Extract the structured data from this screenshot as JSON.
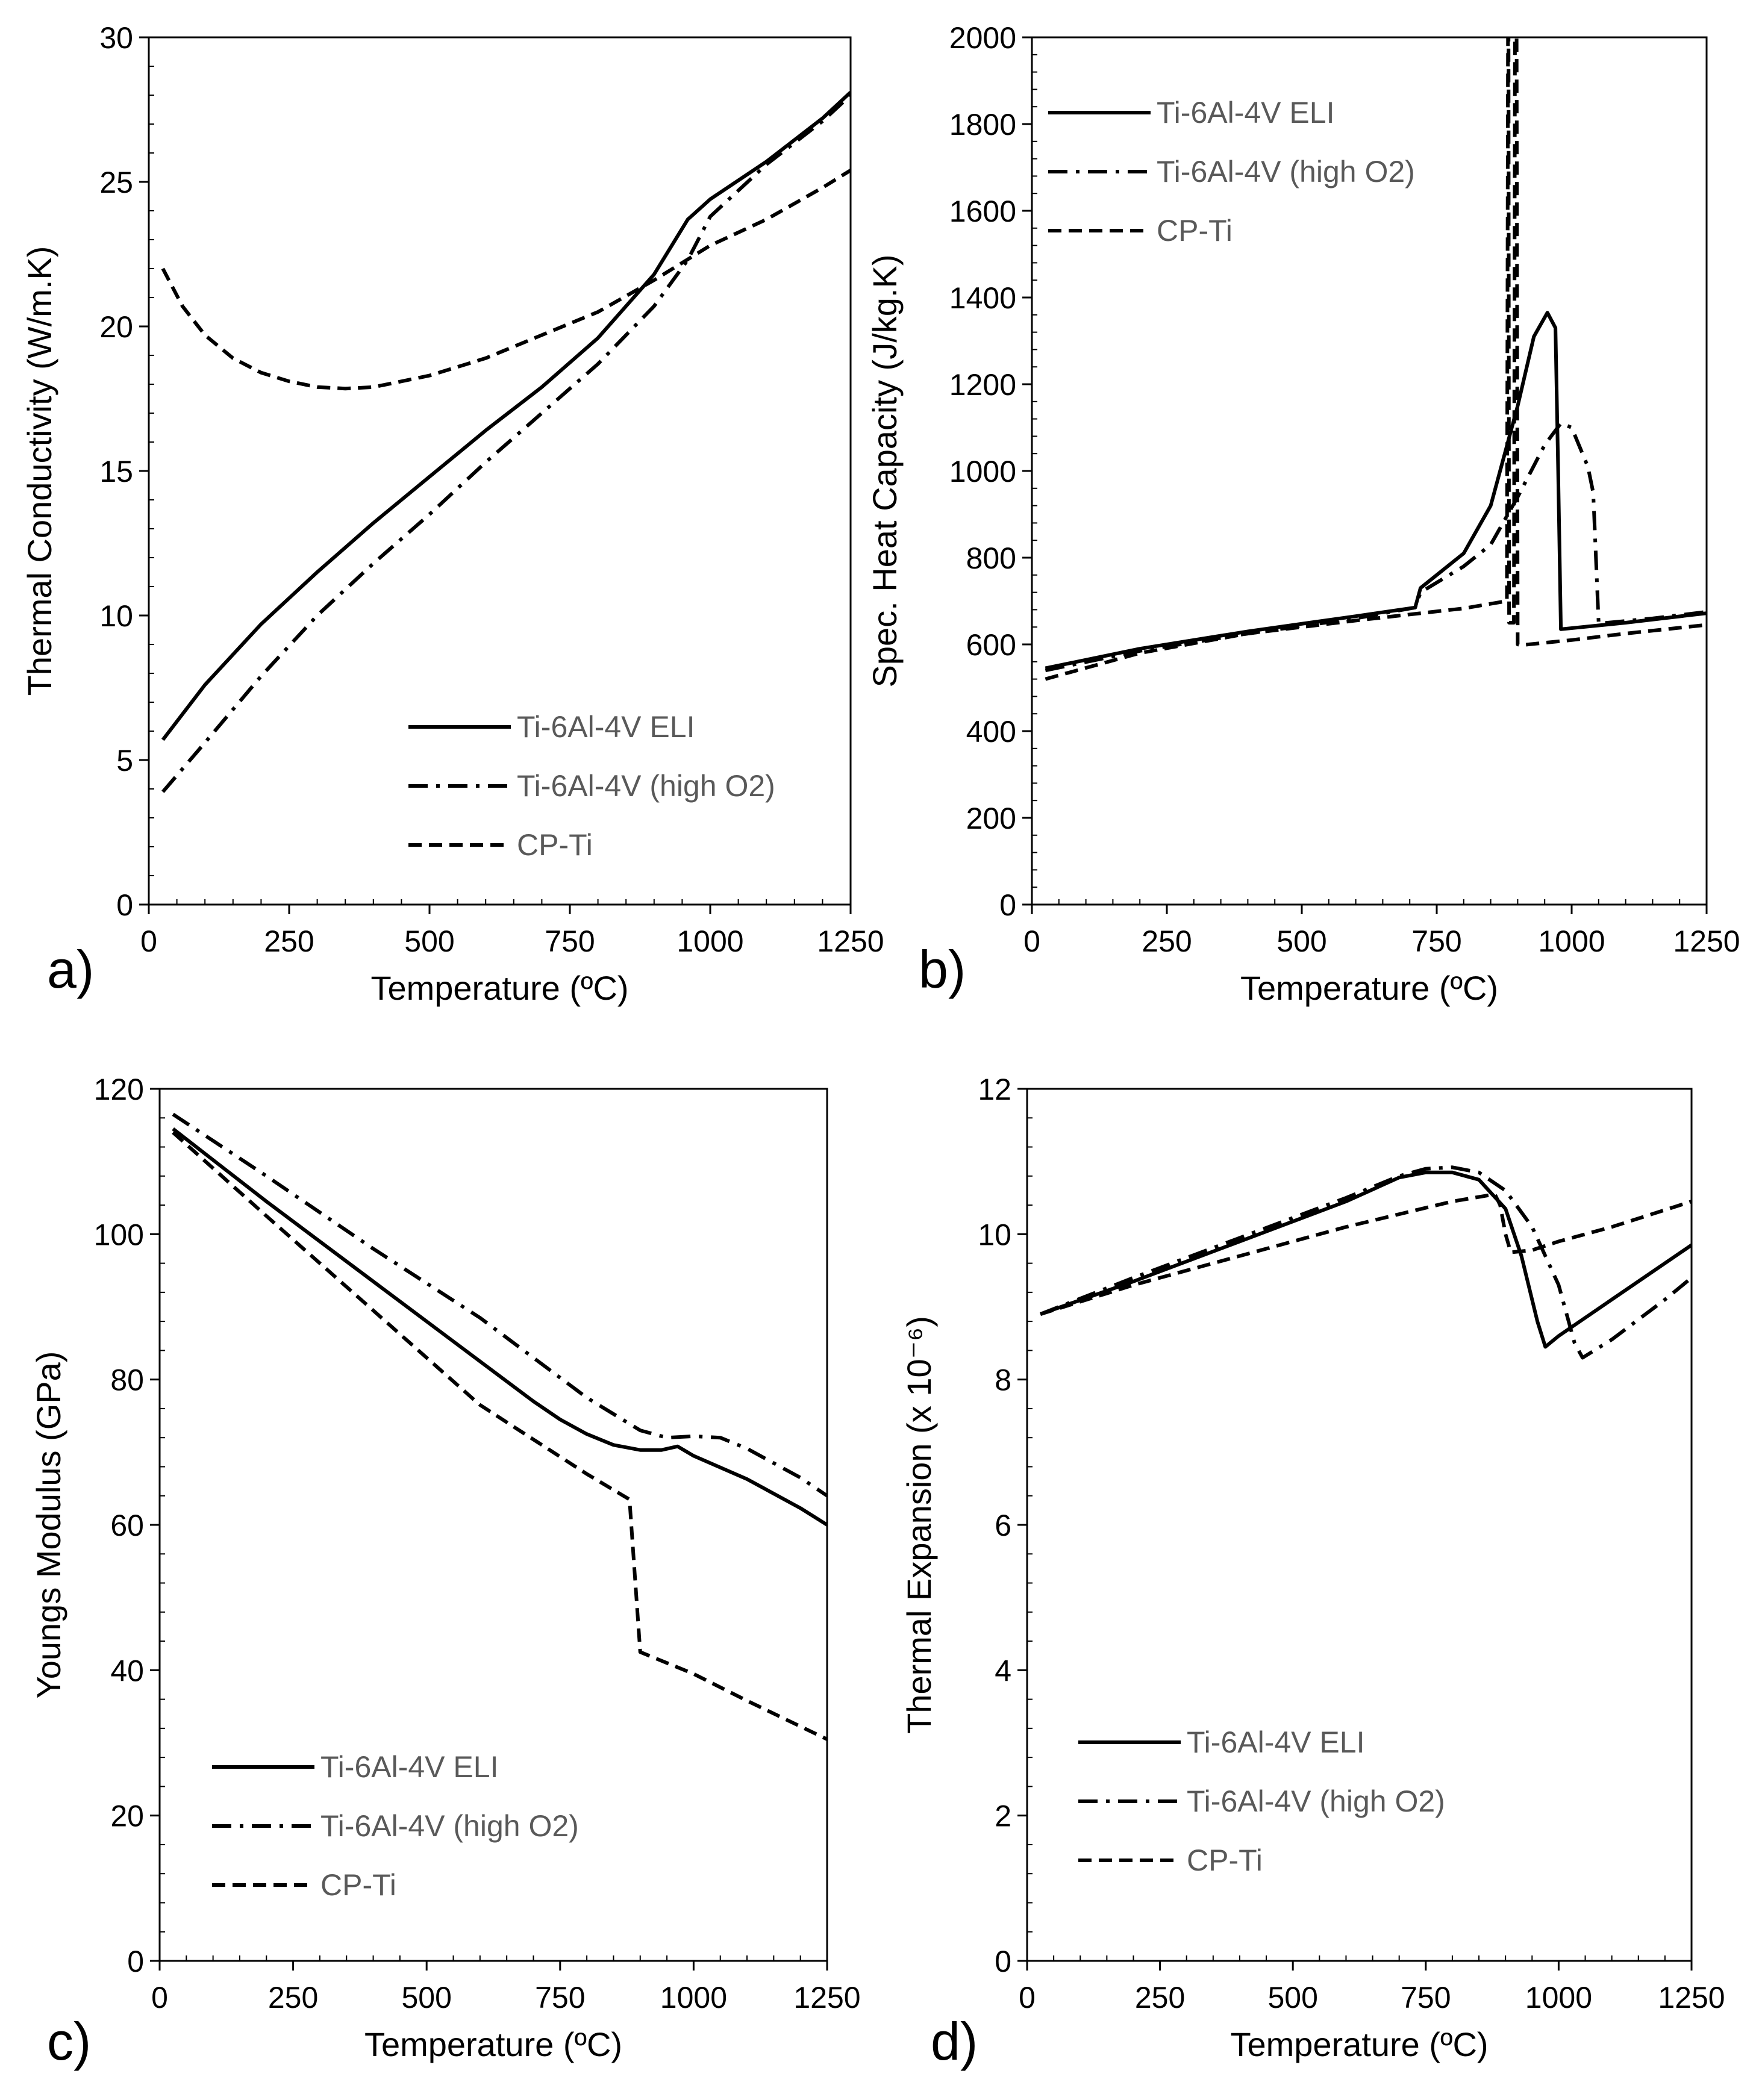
{
  "chart_data": [
    {
      "type": "line",
      "panel_label": "a)",
      "xlabel": "Temperature (ºC)",
      "ylabel": "Thermal Conductivity (W/m.K)",
      "xlim": [
        0,
        1250
      ],
      "ylim": [
        0,
        30
      ],
      "x_ticks": [
        0,
        250,
        500,
        750,
        1000,
        1250
      ],
      "x_tick_labels": [
        "0",
        "250",
        "500",
        "750",
        "1000",
        "1250"
      ],
      "y_ticks": [
        0,
        5,
        10,
        15,
        20,
        25,
        30
      ],
      "y_tick_labels": [
        "0",
        "5",
        "10",
        "15",
        "20",
        "25",
        "30"
      ],
      "legend_position": "bottom-right",
      "series": [
        {
          "name": "Ti-6Al-4V ELI",
          "style": "solid",
          "x": [
            25,
            100,
            200,
            300,
            400,
            500,
            600,
            700,
            800,
            900,
            960,
            1000,
            1100,
            1200,
            1250
          ],
          "y": [
            5.7,
            7.6,
            9.7,
            11.5,
            13.2,
            14.8,
            16.4,
            17.9,
            19.6,
            21.8,
            23.7,
            24.4,
            25.7,
            27.2,
            28.1
          ]
        },
        {
          "name": "Ti-6Al-4V (high O2)",
          "style": "dashdot",
          "x": [
            25,
            100,
            200,
            300,
            400,
            500,
            600,
            700,
            800,
            900,
            960,
            1000,
            1100,
            1200,
            1250
          ],
          "y": [
            3.9,
            5.6,
            7.9,
            10.0,
            11.8,
            13.5,
            15.3,
            17.0,
            18.7,
            20.7,
            22.3,
            23.8,
            25.6,
            27.1,
            28.0
          ]
        },
        {
          "name": "CP-Ti",
          "style": "dashed",
          "x": [
            25,
            60,
            100,
            150,
            200,
            250,
            300,
            350,
            400,
            500,
            600,
            700,
            800,
            900,
            1000,
            1100,
            1200,
            1250
          ],
          "y": [
            22.0,
            20.7,
            19.7,
            18.9,
            18.4,
            18.1,
            17.9,
            17.85,
            17.9,
            18.3,
            18.9,
            19.7,
            20.5,
            21.6,
            22.8,
            23.7,
            24.8,
            25.4
          ]
        }
      ]
    },
    {
      "type": "line",
      "panel_label": "b)",
      "xlabel": "Temperature (ºC)",
      "ylabel": "Spec. Heat Capacity (J/kg.K)",
      "xlim": [
        0,
        1250
      ],
      "ylim": [
        0,
        2000
      ],
      "x_ticks": [
        0,
        250,
        500,
        750,
        1000,
        1250
      ],
      "x_tick_labels": [
        "0",
        "250",
        "500",
        "750",
        "1000",
        "1250"
      ],
      "y_ticks": [
        0,
        200,
        400,
        600,
        800,
        1000,
        1200,
        1400,
        1600,
        1800,
        2000
      ],
      "y_tick_labels": [
        "0",
        "200",
        "400",
        "600",
        "800",
        "1000",
        "1200",
        "1400",
        "1600",
        "1800",
        "2000"
      ],
      "legend_position": "top-left",
      "series": [
        {
          "name": "Ti-6Al-4V ELI",
          "style": "solid",
          "x": [
            25,
            200,
            400,
            600,
            710,
            720,
            800,
            850,
            900,
            930,
            955,
            970,
            975,
            980,
            1100,
            1250
          ],
          "y": [
            545,
            590,
            630,
            665,
            685,
            730,
            810,
            920,
            1150,
            1310,
            1365,
            1330,
            1000,
            635,
            650,
            672
          ]
        },
        {
          "name": "Ti-6Al-4V (high O2)",
          "style": "dashdot",
          "x": [
            25,
            200,
            400,
            600,
            710,
            720,
            800,
            850,
            900,
            950,
            980,
            1000,
            1030,
            1040,
            1045,
            1050,
            1150,
            1250
          ],
          "y": [
            540,
            585,
            625,
            660,
            685,
            720,
            780,
            830,
            940,
            1060,
            1110,
            1100,
            1010,
            950,
            800,
            648,
            660,
            675
          ]
        },
        {
          "name": "CP-Ti",
          "style": "dashed",
          "x": [
            25,
            200,
            400,
            600,
            800,
            880,
            882,
            883,
            884,
            893,
            895,
            898,
            900,
            905,
            1000,
            1100,
            1250
          ],
          "y": [
            520,
            580,
            625,
            655,
            683,
            700,
            2000,
            2000,
            650,
            650,
            2000,
            2000,
            600,
            598,
            610,
            625,
            645
          ]
        }
      ]
    },
    {
      "type": "line",
      "panel_label": "c)",
      "xlabel": "Temperature (ºC)",
      "ylabel": "Youngs Modulus (GPa)",
      "xlim": [
        0,
        1250
      ],
      "ylim": [
        0,
        120
      ],
      "x_ticks": [
        0,
        250,
        500,
        750,
        1000,
        1250
      ],
      "x_tick_labels": [
        "0",
        "250",
        "500",
        "750",
        "1000",
        "1250"
      ],
      "y_ticks": [
        0,
        20,
        40,
        60,
        80,
        100,
        120
      ],
      "y_tick_labels": [
        "0",
        "20",
        "40",
        "60",
        "80",
        "100",
        "120"
      ],
      "legend_position": "bottom-left",
      "series": [
        {
          "name": "Ti-6Al-4V ELI",
          "style": "solid",
          "x": [
            25,
            200,
            400,
            600,
            700,
            750,
            800,
            850,
            900,
            940,
            970,
            1000,
            1100,
            1200,
            1250
          ],
          "y": [
            114.5,
            104.5,
            93.5,
            82.5,
            77.0,
            74.5,
            72.5,
            71.0,
            70.3,
            70.3,
            70.8,
            69.5,
            66.3,
            62.3,
            60.0
          ]
        },
        {
          "name": "Ti-6Al-4V (high O2)",
          "style": "dashdot",
          "x": [
            25,
            200,
            400,
            600,
            700,
            800,
            900,
            950,
            1000,
            1050,
            1100,
            1200,
            1250
          ],
          "y": [
            116.5,
            108.0,
            98.0,
            88.5,
            83.0,
            77.5,
            73.0,
            72.0,
            72.2,
            72.0,
            70.5,
            66.5,
            64.0
          ]
        },
        {
          "name": "CP-Ti",
          "style": "dashed",
          "x": [
            25,
            200,
            400,
            600,
            800,
            880,
            890,
            900,
            1000,
            1100,
            1250
          ],
          "y": [
            114.0,
            102.5,
            89.5,
            76.5,
            67.0,
            63.5,
            53.0,
            42.5,
            39.5,
            35.8,
            30.5
          ]
        }
      ]
    },
    {
      "type": "line",
      "panel_label": "d)",
      "xlabel": "Temperature (ºC)",
      "ylabel": "Thermal Expansion (x 10⁻⁶)",
      "xlim": [
        0,
        1250
      ],
      "ylim": [
        0,
        12
      ],
      "x_ticks": [
        0,
        250,
        500,
        750,
        1000,
        1250
      ],
      "x_tick_labels": [
        "0",
        "250",
        "500",
        "750",
        "1000",
        "1250"
      ],
      "y_ticks": [
        0,
        2,
        4,
        6,
        8,
        10,
        12
      ],
      "y_tick_labels": [
        "0",
        "2",
        "4",
        "6",
        "8",
        "10",
        "12"
      ],
      "legend_position": "bottom-left",
      "series": [
        {
          "name": "Ti-6Al-4V ELI",
          "style": "solid",
          "x": [
            25,
            200,
            400,
            600,
            700,
            750,
            800,
            850,
            900,
            930,
            960,
            975,
            1000,
            1100,
            1250
          ],
          "y": [
            8.9,
            9.35,
            9.9,
            10.45,
            10.78,
            10.85,
            10.85,
            10.75,
            10.35,
            9.7,
            8.8,
            8.45,
            8.6,
            9.1,
            9.85
          ]
        },
        {
          "name": "Ti-6Al-4V (high O2)",
          "style": "dashdot",
          "x": [
            25,
            200,
            400,
            600,
            700,
            750,
            800,
            850,
            900,
            950,
            1000,
            1030,
            1045,
            1100,
            1200,
            1250
          ],
          "y": [
            8.9,
            9.4,
            9.95,
            10.5,
            10.8,
            10.9,
            10.92,
            10.85,
            10.6,
            10.1,
            9.3,
            8.5,
            8.3,
            8.55,
            9.1,
            9.4
          ]
        },
        {
          "name": "CP-Ti",
          "style": "dashed",
          "x": [
            25,
            200,
            400,
            600,
            800,
            880,
            890,
            900,
            910,
            950,
            1000,
            1100,
            1250
          ],
          "y": [
            8.9,
            9.3,
            9.7,
            10.1,
            10.45,
            10.55,
            10.4,
            10.0,
            9.75,
            9.78,
            9.9,
            10.1,
            10.45
          ]
        }
      ]
    }
  ]
}
